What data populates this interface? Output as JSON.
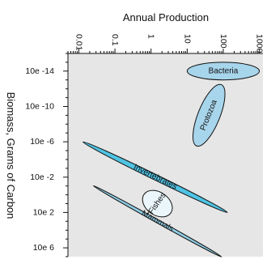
{
  "chart_data": {
    "type": "scatter",
    "subtype": "ellipse-regions",
    "x_axis": {
      "label": "Annual Production",
      "scale": "log",
      "position": "top",
      "range": [
        0.005,
        1250
      ],
      "ticks": [
        0.01,
        0.1,
        1,
        10,
        100,
        1000
      ],
      "tick_labels": [
        "0.01",
        "0.1",
        "1",
        "10",
        "100",
        "1000"
      ]
    },
    "y_axis": {
      "label": "Biomass, Grams of Carbon",
      "scale": "log",
      "inverted": true,
      "range": [
        1e-16,
        10000000.0
      ],
      "ticks": [
        1e-14,
        1e-10,
        1e-06,
        0.01,
        100.0,
        1000000.0
      ],
      "tick_labels": [
        "10e -14",
        "10e -10",
        "10e -6",
        "10e -2",
        "10e 2",
        "10e 6"
      ]
    },
    "grid": false,
    "legend": "none",
    "groups": [
      {
        "name": "Bacteria",
        "color": "#a7d5eb",
        "x_center": 100,
        "y_center": 1e-14,
        "x_extent": [
          10,
          1000
        ],
        "y_extent": [
          1e-15,
          1e-13
        ],
        "rotation_deg": 0
      },
      {
        "name": "Protozoa",
        "color": "#a7d5eb",
        "x_center": 40,
        "y_center": 1e-09,
        "x_extent": [
          13,
          100
        ],
        "y_extent": [
          1e-12,
          1e-05
        ],
        "rotation_deg": -68
      },
      {
        "name": "Invertebrates",
        "color": "#4fc3e3",
        "x_center": 1.3,
        "y_center": 0.01,
        "x_extent": [
          0.02,
          200
        ],
        "y_extent": [
          1e-06,
          100
        ],
        "rotation_deg": 26
      },
      {
        "name": "Fishes",
        "color": "#eaf6fb",
        "x_center": 1.5,
        "y_center": 10,
        "x_extent": [
          0.6,
          4
        ],
        "y_extent": [
          0.1,
          100
        ],
        "rotation_deg": -55
      },
      {
        "name": "Mammals",
        "color": "#8fcce3",
        "x_center": 1.5,
        "y_center": 1000,
        "x_extent": [
          0.02,
          60
        ],
        "y_extent": [
          10,
          10000000.0
        ],
        "rotation_deg": 29
      }
    ]
  },
  "colors": {
    "plot_background": "#e6e6e6",
    "outline": "#111111"
  }
}
